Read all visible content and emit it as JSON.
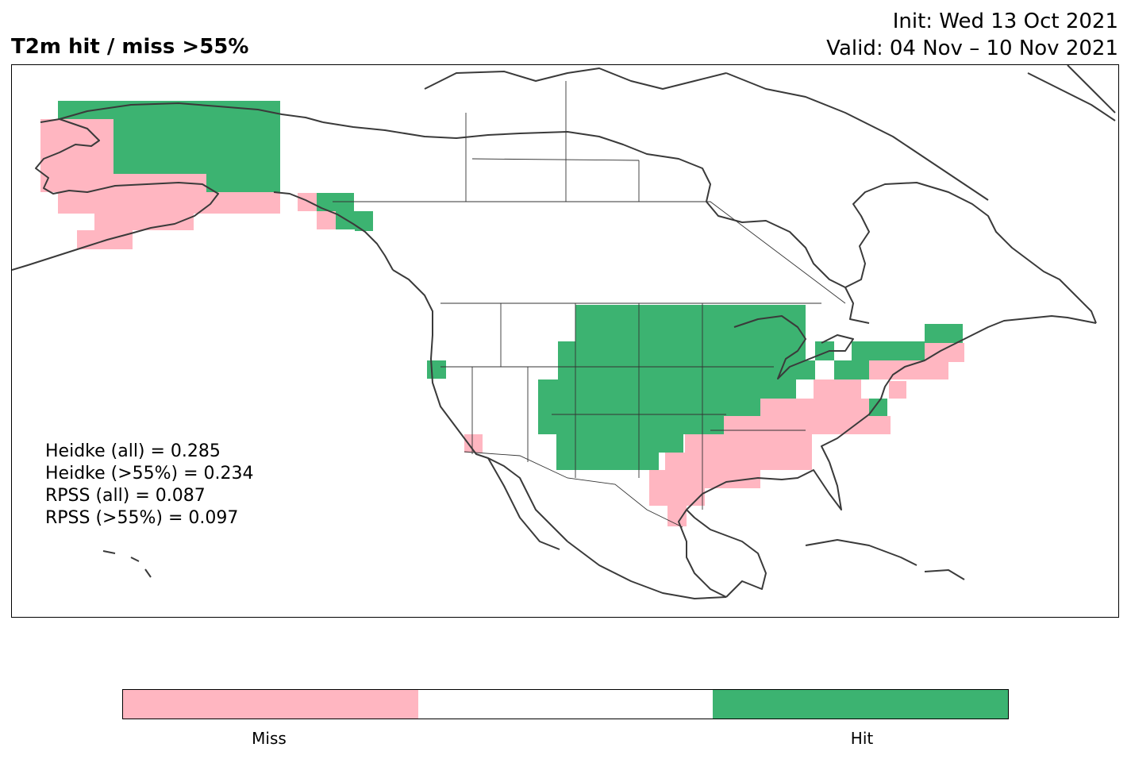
{
  "title": "T2m hit / miss  >55%",
  "init_line": "Init: Wed 13 Oct 2021",
  "valid_line": "Valid: 04 Nov – 10 Nov 2021",
  "stats": {
    "heidke_all": "Heidke (all) = 0.285",
    "heidke_55": "Heidke (>55%) = 0.234",
    "rpss_all": "RPSS (all) = 0.087",
    "rpss_55": "RPSS (>55%) = 0.097"
  },
  "colors": {
    "miss": "#ffb6c1",
    "none": "#ffffff",
    "hit": "#3cb371",
    "coast": "#3a3a3a",
    "border": "#333333"
  },
  "colorbar": {
    "labels": [
      "Miss",
      "Hit"
    ]
  }
}
